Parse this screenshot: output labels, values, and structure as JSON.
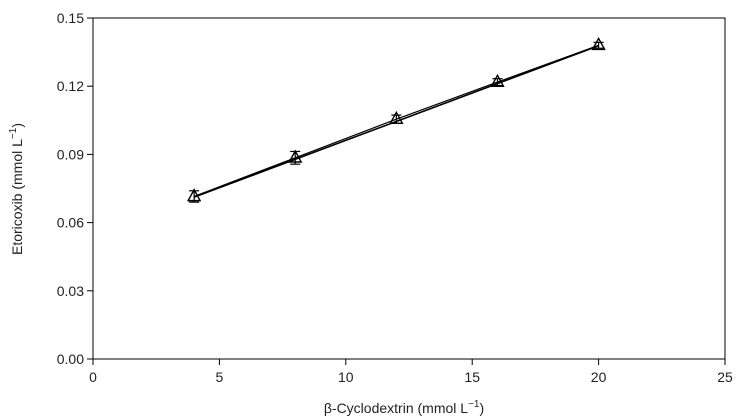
{
  "chart_data": {
    "type": "scatter",
    "title": "",
    "xlabel": "β-Cyclodextrin (mmol L",
    "xlabel_sup": "−1",
    "xlabel_close": ")",
    "ylabel": "Etoricoxib (mmol L",
    "ylabel_sup": "−1",
    "ylabel_close": ")",
    "xlim": [
      0,
      25
    ],
    "ylim": [
      0.0,
      0.15
    ],
    "xticks": [
      0,
      5,
      10,
      15,
      20,
      25
    ],
    "xtick_labels": [
      "0",
      "5",
      "10",
      "15",
      "20",
      "25"
    ],
    "yticks": [
      0.0,
      0.03,
      0.06,
      0.09,
      0.12,
      0.15
    ],
    "ytick_labels": [
      "0.00",
      "0.03",
      "0.06",
      "0.09",
      "0.12",
      "0.15"
    ],
    "grid": false,
    "marker": "open-triangle",
    "line_color": "#000000",
    "series": [
      {
        "x": [
          4,
          8,
          12,
          16,
          20
        ],
        "y": [
          0.0715,
          0.0885,
          0.1055,
          0.1218,
          0.138
        ],
        "error": [
          0.0025,
          0.0028,
          0.0018,
          0.0015,
          0.0013
        ]
      }
    ],
    "fit_line": {
      "x": [
        4,
        20
      ],
      "y": [
        0.0712,
        0.1378
      ]
    }
  }
}
